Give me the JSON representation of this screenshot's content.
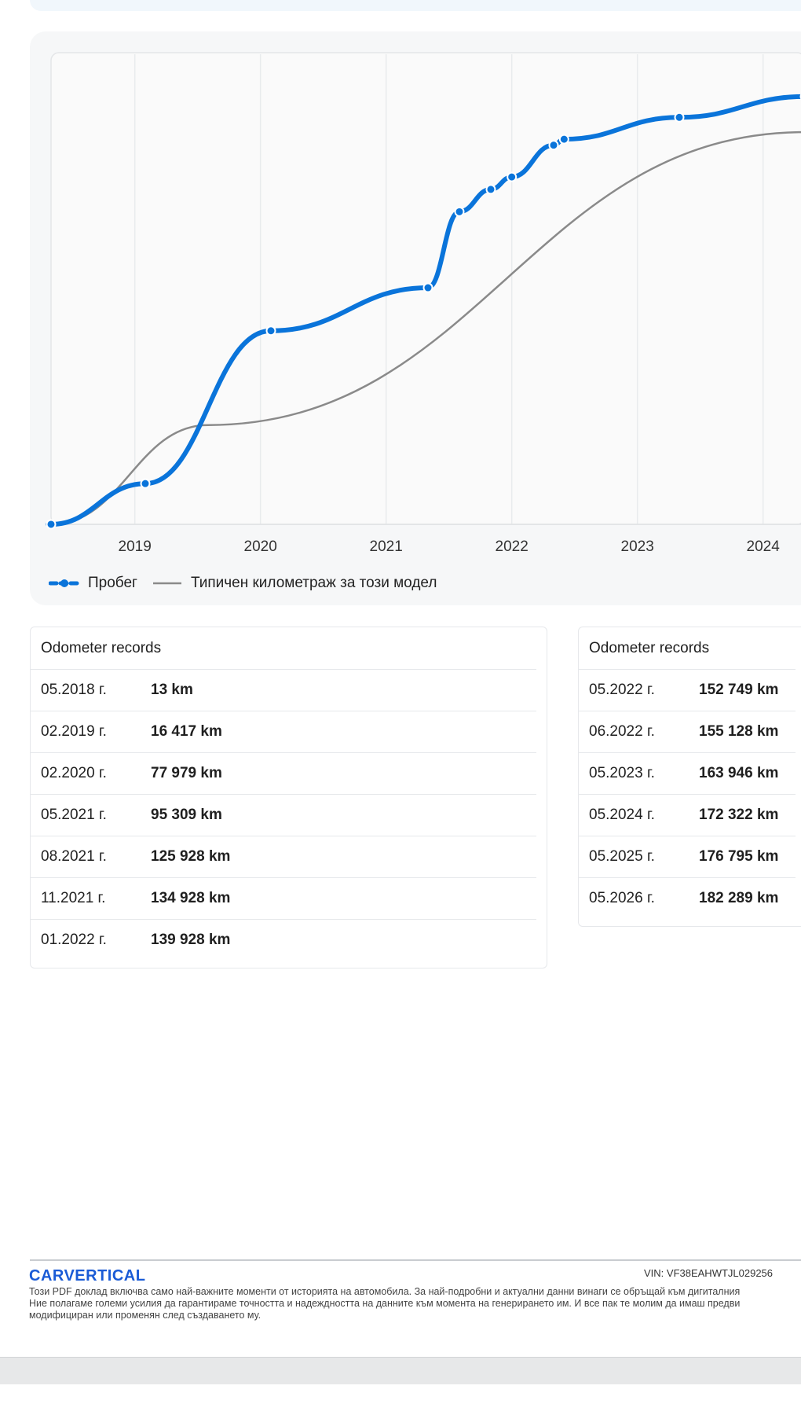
{
  "chart_data": {
    "type": "line",
    "x_ticks": [
      "2019",
      "2020",
      "2021",
      "2022",
      "2023",
      "2024"
    ],
    "series": [
      {
        "name": "Пробег",
        "color": "#0a74da",
        "points": [
          {
            "x": "2018-05",
            "y": 13
          },
          {
            "x": "2019-02",
            "y": 16417
          },
          {
            "x": "2020-02",
            "y": 77979
          },
          {
            "x": "2021-05",
            "y": 95309
          },
          {
            "x": "2021-08",
            "y": 125928
          },
          {
            "x": "2021-11",
            "y": 134928
          },
          {
            "x": "2022-01",
            "y": 139928
          },
          {
            "x": "2022-05",
            "y": 152749
          },
          {
            "x": "2022-06",
            "y": 155128
          },
          {
            "x": "2023-05",
            "y": 163946
          },
          {
            "x": "2024-05",
            "y": 172322
          }
        ]
      },
      {
        "name": "Типичен километраж за този модел",
        "color": "#8a8a8a",
        "points": [
          {
            "x": "2018-05",
            "y": 0
          },
          {
            "x": "2019-08",
            "y": 40000
          },
          {
            "x": "2024-05",
            "y": 158000
          }
        ]
      }
    ],
    "ylim": [
      0,
      190000
    ],
    "grid": true,
    "legend": "bottom-left"
  },
  "records_left": {
    "title": "Odometer records",
    "rows": [
      {
        "date": "05.2018 г.",
        "km": "13 km"
      },
      {
        "date": "02.2019 г.",
        "km": "16 417 km"
      },
      {
        "date": "02.2020 г.",
        "km": "77 979 km"
      },
      {
        "date": "05.2021 г.",
        "km": "95 309 km"
      },
      {
        "date": "08.2021 г.",
        "km": "125 928 km"
      },
      {
        "date": "11.2021 г.",
        "km": "134 928 km"
      },
      {
        "date": "01.2022 г.",
        "km": "139 928 km"
      }
    ]
  },
  "records_right": {
    "title": "Odometer records",
    "rows": [
      {
        "date": "05.2022 г.",
        "km": "152 749 km"
      },
      {
        "date": "06.2022 г.",
        "km": "155 128 km"
      },
      {
        "date": "05.2023 г.",
        "km": "163 946 km"
      },
      {
        "date": "05.2024 г.",
        "km": "172 322 km"
      },
      {
        "date": "05.2025 г.",
        "km": "176 795 km"
      },
      {
        "date": "05.2026 г.",
        "km": "182 289 km"
      }
    ]
  },
  "footer": {
    "logo": "CARVERTICAL",
    "vin": "VIN:  VF38EAHWTJL029256",
    "disclaimer_lines": [
      "Този PDF доклад включва само най-важните моменти от историята на автомобила. За най-подробни и актуални данни винаги се обръщай към дигиталния",
      "Ние полагаме големи усилия да гарантираме точността и надеждността на данните към момента на генерирането им. И все пак те молим да имаш предви",
      "модифициран или променян след създаването му."
    ]
  },
  "colors": {
    "accent": "#0a74da",
    "typical": "#8a8a8a",
    "logo": "#1a5bd6"
  }
}
